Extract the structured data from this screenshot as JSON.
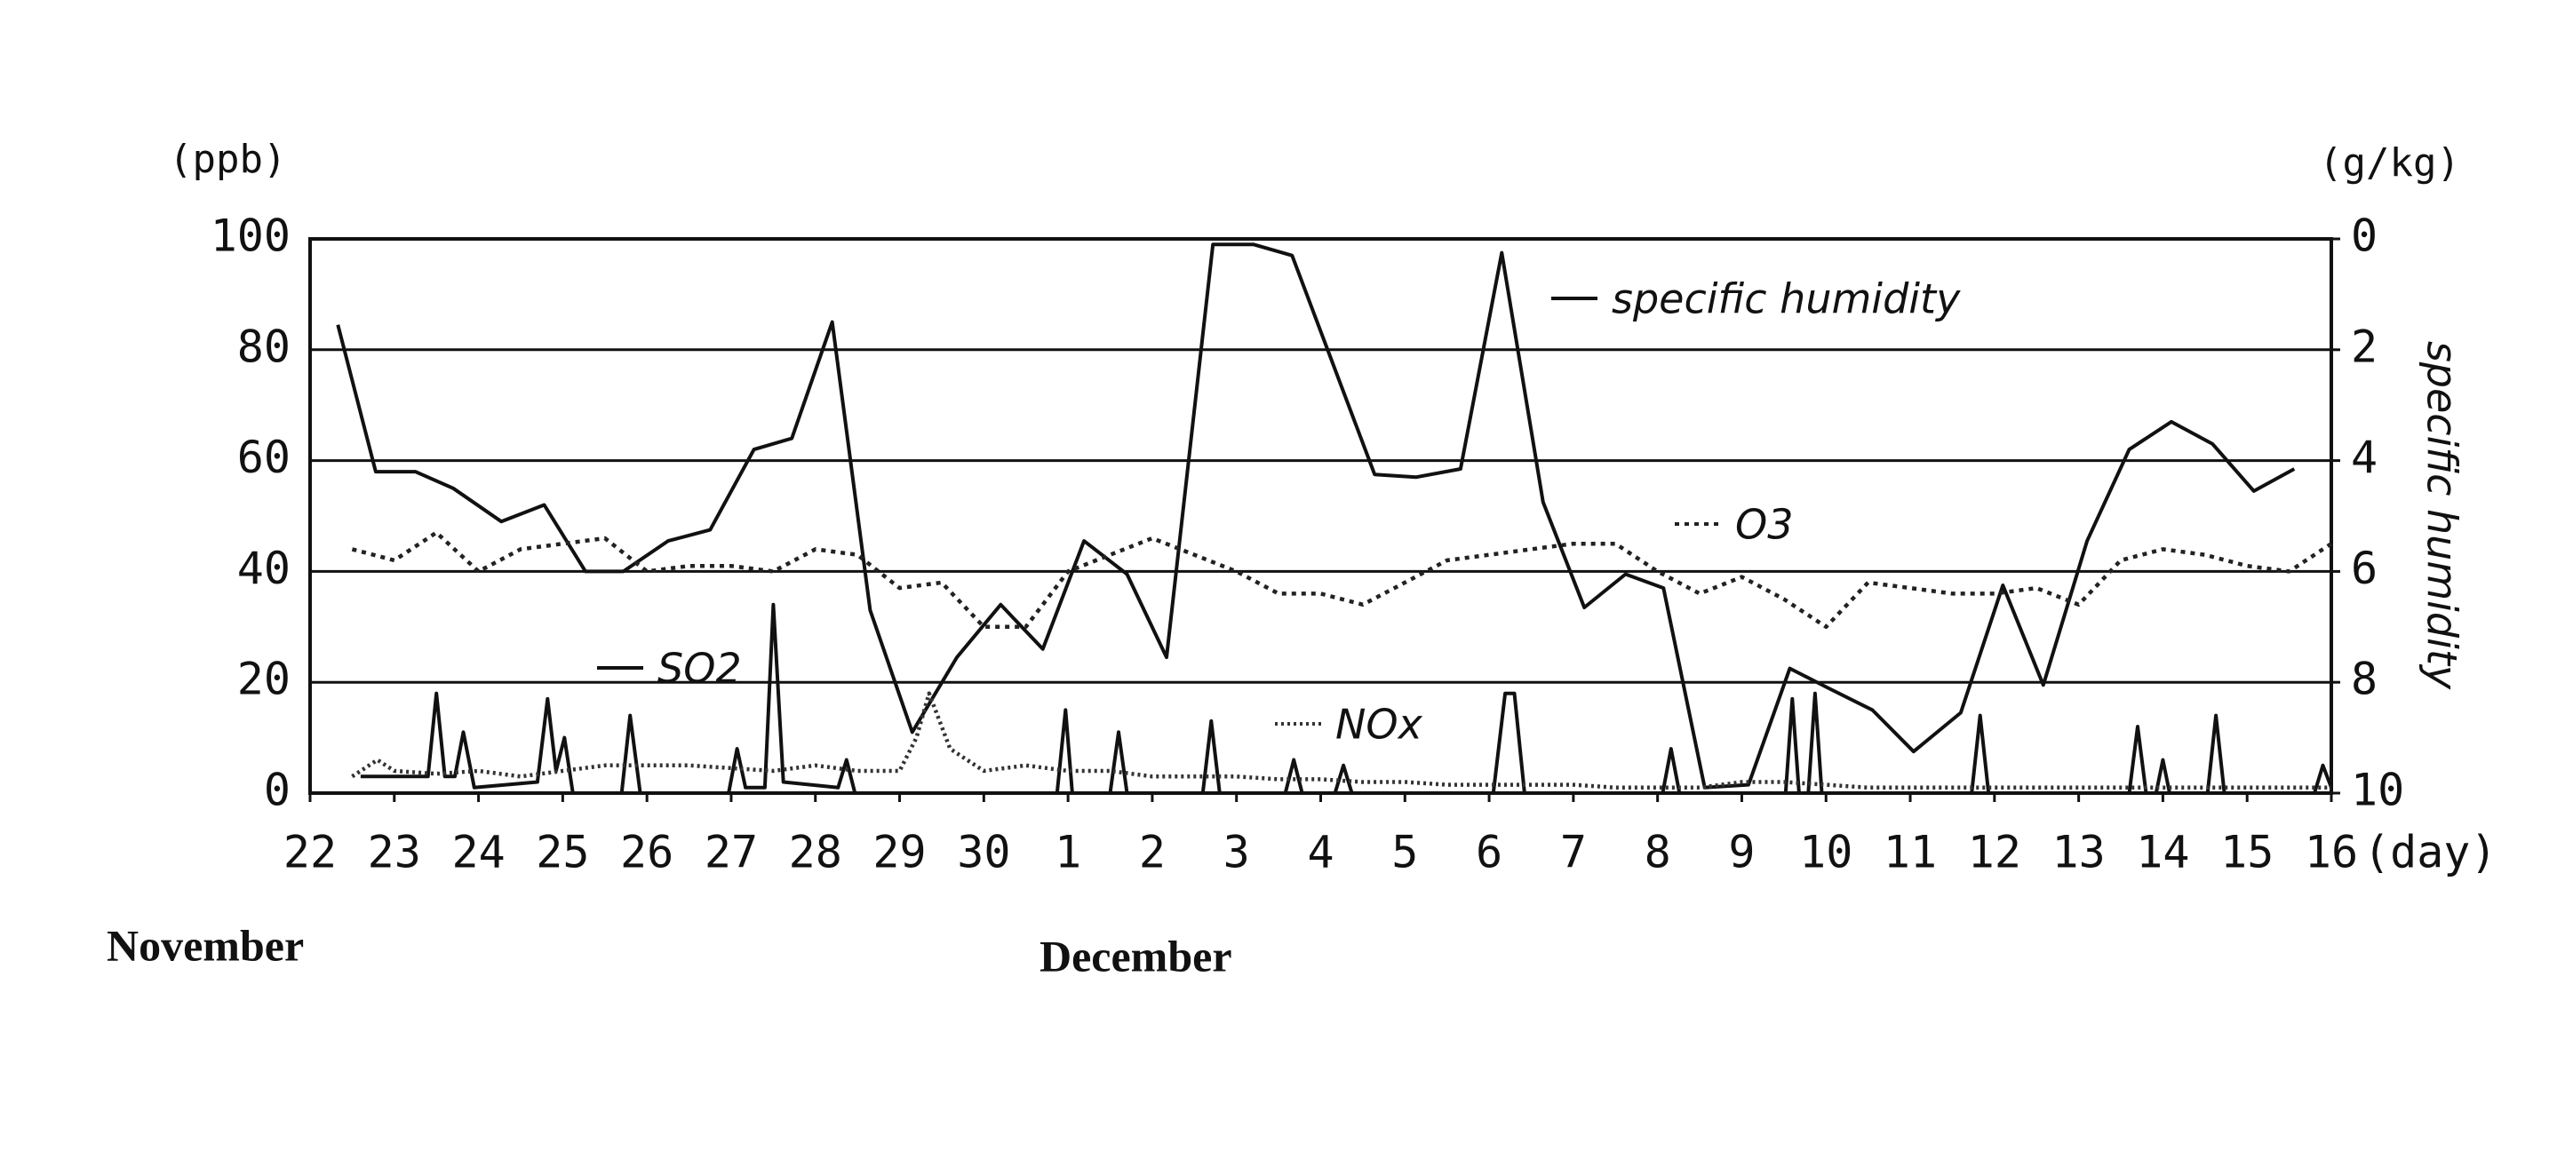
{
  "chart_data": {
    "type": "line",
    "y_unit": "(ppb)",
    "y2_unit": "(g/kg)",
    "y2_label": "specific humidity",
    "x_label": "(day)",
    "month_labels": [
      "November",
      "December"
    ],
    "xlim": [
      0,
      24
    ],
    "xticks": [
      {
        "value": 0,
        "label": "22"
      },
      {
        "value": 1,
        "label": "23"
      },
      {
        "value": 2,
        "label": "24"
      },
      {
        "value": 3,
        "label": "25"
      },
      {
        "value": 4,
        "label": "26"
      },
      {
        "value": 5,
        "label": "27"
      },
      {
        "value": 6,
        "label": "28"
      },
      {
        "value": 7,
        "label": "29"
      },
      {
        "value": 8,
        "label": "30"
      },
      {
        "value": 9,
        "label": "1"
      },
      {
        "value": 10,
        "label": "2"
      },
      {
        "value": 11,
        "label": "3"
      },
      {
        "value": 12,
        "label": "4"
      },
      {
        "value": 13,
        "label": "5"
      },
      {
        "value": 14,
        "label": "6"
      },
      {
        "value": 15,
        "label": "7"
      },
      {
        "value": 16,
        "label": "8"
      },
      {
        "value": 17,
        "label": "9"
      },
      {
        "value": 18,
        "label": "10"
      },
      {
        "value": 19,
        "label": "11"
      },
      {
        "value": 20,
        "label": "12"
      },
      {
        "value": 21,
        "label": "13"
      },
      {
        "value": 22,
        "label": "14"
      },
      {
        "value": 23,
        "label": "15"
      },
      {
        "value": 24,
        "label": "16"
      }
    ],
    "ylim": [
      0,
      100
    ],
    "yticks": [
      0,
      20,
      40,
      60,
      80,
      100
    ],
    "y2lim": [
      10,
      0
    ],
    "y2ticks": [
      0,
      2,
      4,
      6,
      8,
      10
    ],
    "grid": true,
    "series": [
      {
        "name": "specific humidity",
        "color": "#111111",
        "style": "solid",
        "axis": "y2",
        "x": [
          0.33,
          0.78,
          1.25,
          1.7,
          2.27,
          2.78,
          3.27,
          3.72,
          4.25,
          4.75,
          5.27,
          5.72,
          6.2,
          6.65,
          7.15,
          7.68,
          8.2,
          8.7,
          9.19,
          9.7,
          10.17,
          10.72,
          11.2,
          11.66,
          12.64,
          13.13,
          13.66,
          14.15,
          14.64,
          15.13,
          15.62,
          16.07,
          16.56,
          17.08,
          17.57,
          18.02,
          18.55,
          19.04,
          19.6,
          20.1,
          20.58,
          21.1,
          21.6,
          22.1,
          22.59,
          23.08,
          23.56
        ],
        "values": [
          1.55,
          4.2,
          4.2,
          4.5,
          5.1,
          4.8,
          6.0,
          6.0,
          5.45,
          5.25,
          3.8,
          3.6,
          1.5,
          6.7,
          8.9,
          7.55,
          6.6,
          7.4,
          5.45,
          6.05,
          7.55,
          0.1,
          0.1,
          0.3,
          4.25,
          4.3,
          4.15,
          0.25,
          4.75,
          6.65,
          6.05,
          6.3,
          9.9,
          9.85,
          7.75,
          8.1,
          8.5,
          9.25,
          8.55,
          6.25,
          8.05,
          5.45,
          3.8,
          3.3,
          3.7,
          4.55,
          4.15
        ]
      },
      {
        "name": "O3",
        "color": "#222222",
        "style": "dotted",
        "x": [
          0.5,
          1,
          1.5,
          2,
          2.5,
          3,
          3.5,
          4,
          4.5,
          5,
          5.5,
          6,
          6.5,
          7,
          7.5,
          8,
          8.5,
          9,
          9.5,
          10,
          10.5,
          11,
          11.5,
          12,
          12.5,
          13,
          13.5,
          14,
          14.5,
          15,
          15.5,
          16,
          16.5,
          17,
          17.5,
          18,
          18.5,
          19,
          19.5,
          20,
          20.5,
          21,
          21.5,
          22,
          22.5,
          23,
          23.5,
          24
        ],
        "values": [
          44,
          42,
          47,
          40,
          44,
          45,
          46,
          40,
          41,
          41,
          40,
          44,
          43,
          37,
          38,
          30,
          30,
          40,
          43,
          46,
          43,
          40,
          36,
          36,
          34,
          38,
          42,
          43,
          44,
          45,
          45,
          40,
          36,
          39,
          35,
          30,
          38,
          37,
          36,
          36,
          37,
          34,
          42,
          44,
          43,
          41,
          40,
          45
        ]
      },
      {
        "name": "SO2",
        "color": "#111111",
        "style": "solid",
        "x": [
          0.6,
          1.4,
          1.5,
          1.6,
          1.72,
          1.82,
          1.95,
          2.7,
          2.82,
          2.92,
          3.02,
          3.12,
          3.7,
          3.8,
          3.92,
          4.97,
          5.07,
          5.17,
          5.4,
          5.5,
          5.62,
          6.27,
          6.37,
          6.47,
          8.87,
          8.97,
          9.05,
          9.5,
          9.6,
          9.7,
          10.6,
          10.7,
          10.8,
          11.58,
          11.68,
          11.78,
          12.17,
          12.27,
          12.37,
          14.05,
          14.19,
          14.3,
          14.42,
          16.06,
          16.16,
          16.26,
          17.52,
          17.6,
          17.68,
          17.79,
          17.87,
          17.95,
          19.73,
          19.83,
          19.93,
          21.6,
          21.7,
          21.8,
          21.92,
          22.0,
          22.08,
          22.53,
          22.63,
          22.73,
          23.8,
          23.9,
          24
        ],
        "values": [
          3,
          3,
          18,
          3,
          3,
          11,
          1,
          2,
          17,
          4,
          10,
          0,
          0,
          14,
          0,
          0,
          8,
          1,
          1,
          34,
          2,
          1,
          6,
          0,
          0,
          15,
          0,
          0,
          11,
          0,
          0,
          13,
          0,
          0,
          6,
          0,
          0,
          5,
          0,
          0,
          18,
          18,
          0,
          0,
          8,
          0,
          0,
          17,
          0,
          0,
          18,
          0,
          0,
          14,
          0,
          0,
          12,
          0,
          0,
          6,
          0,
          0,
          14,
          0,
          0,
          5,
          1
        ]
      },
      {
        "name": "NOx",
        "color": "#333333",
        "style": "fine-dotted",
        "x": [
          0.5,
          0.8,
          1,
          1.5,
          2,
          2.5,
          3,
          3.5,
          4,
          4.5,
          5,
          5.5,
          6,
          6.5,
          7,
          7.2,
          7.35,
          7.6,
          8,
          8.5,
          9,
          9.5,
          10,
          10.5,
          11,
          11.5,
          12,
          12.5,
          13,
          13.5,
          14,
          14.5,
          15,
          15.5,
          16,
          16.5,
          17,
          17.5,
          18,
          18.5,
          19,
          19.5,
          20,
          20.5,
          21,
          21.5,
          22,
          22.5,
          23,
          23.5,
          24
        ],
        "values": [
          3,
          6,
          4,
          3.5,
          4,
          3,
          4,
          5,
          5,
          5,
          4.5,
          4,
          5,
          4,
          4,
          10,
          18,
          8,
          4,
          5,
          4,
          4,
          3,
          3,
          3,
          2.5,
          2.5,
          2,
          2,
          1.5,
          1.5,
          1.5,
          1.5,
          1,
          1,
          1,
          2,
          2,
          1.5,
          1,
          1,
          1,
          1,
          1,
          1,
          1,
          1,
          1,
          1,
          1,
          1
        ]
      }
    ]
  }
}
